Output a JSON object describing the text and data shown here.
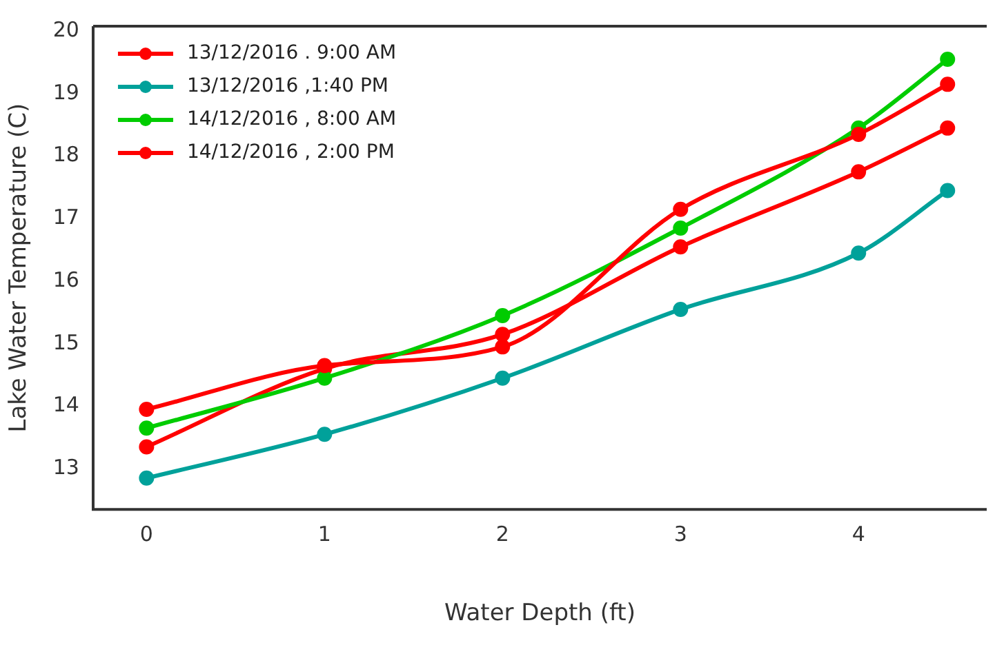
{
  "chart_data": {
    "type": "line",
    "xlabel": "Water Depth (ft)",
    "ylabel": "Lake Water Temperature (C)",
    "x": [
      0,
      1,
      2,
      3,
      4,
      4.5
    ],
    "series": [
      {
        "name": "13/12/2016 . 9:00 AM",
        "color": "#ff0000",
        "values": [
          13.95,
          14.65,
          14.95,
          17.15,
          18.35,
          19.15
        ]
      },
      {
        "name": "13/12/2016 ,1:40 PM",
        "color": "#00a19a",
        "values": [
          12.85,
          13.55,
          14.45,
          15.55,
          16.45,
          17.45
        ]
      },
      {
        "name": "14/12/2016 , 8:00 AM",
        "color": "#00cc00",
        "values": [
          13.65,
          14.45,
          15.45,
          16.85,
          18.45,
          19.55
        ]
      },
      {
        "name": "14/12/2016 , 2:00 PM",
        "color": "#ff0000",
        "values": [
          13.35,
          14.6,
          15.15,
          16.55,
          17.75,
          18.45
        ]
      }
    ],
    "xlim": [
      -0.3,
      4.72
    ],
    "xticks": [
      0,
      1,
      2,
      3,
      4
    ],
    "ylim": [
      12.35,
      20.08
    ],
    "yticks": [
      13,
      14,
      15,
      16,
      17,
      18,
      19,
      20
    ],
    "grid": false,
    "legend": "top left",
    "marker": "circle",
    "line_style": "solid"
  }
}
